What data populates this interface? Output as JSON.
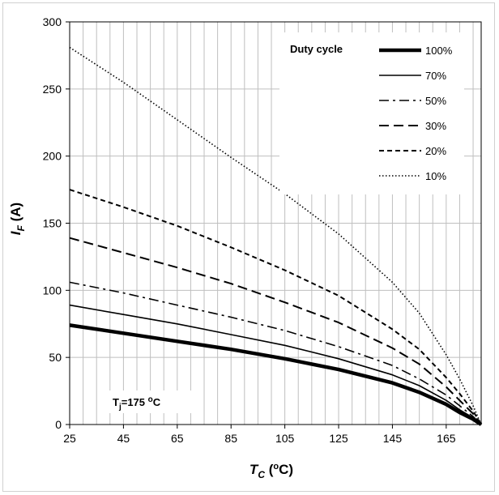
{
  "chart_data": {
    "type": "line",
    "xlabel": {
      "main": "T",
      "sub": "C",
      "unit_pre": " (",
      "unit_sup": "o",
      "unit_post": "C)"
    },
    "ylabel": {
      "main": "I",
      "sub": "F",
      "unit": " (A)"
    },
    "xlim": [
      25,
      178
    ],
    "ylim": [
      0,
      300
    ],
    "xticks": [
      25,
      45,
      65,
      85,
      105,
      125,
      145,
      165
    ],
    "yticks": [
      0,
      50,
      100,
      150,
      200,
      250,
      300
    ],
    "grid": {
      "x_minor_step": 5,
      "y_major_step": 50
    },
    "legend": {
      "title": "Duty cycle",
      "position": "top-right"
    },
    "annotation": {
      "main": "T",
      "sub": "j",
      "value": "=175 ",
      "sup": "o",
      "unit": "C"
    },
    "series": [
      {
        "name": "100%",
        "dash": "solid-thick",
        "x": [
          25,
          45,
          65,
          85,
          105,
          125,
          145,
          155,
          165,
          170,
          175,
          178
        ],
        "y": [
          74,
          68,
          62,
          56,
          49,
          41,
          31,
          24,
          15,
          9,
          4,
          0
        ]
      },
      {
        "name": "70%",
        "dash": "solid",
        "x": [
          25,
          45,
          65,
          85,
          105,
          125,
          145,
          155,
          165,
          170,
          175,
          178
        ],
        "y": [
          89,
          82,
          75,
          67,
          59,
          49,
          37,
          29,
          18,
          11,
          5,
          0
        ]
      },
      {
        "name": "50%",
        "dash": "dashdot",
        "x": [
          25,
          45,
          65,
          85,
          105,
          125,
          145,
          155,
          165,
          170,
          175,
          178
        ],
        "y": [
          106,
          98,
          89,
          80,
          70,
          58,
          44,
          34,
          22,
          14,
          6,
          0
        ]
      },
      {
        "name": "30%",
        "dash": "longdash",
        "x": [
          25,
          45,
          65,
          85,
          105,
          125,
          145,
          155,
          165,
          170,
          175,
          178
        ],
        "y": [
          139,
          128,
          117,
          105,
          91,
          76,
          57,
          45,
          28,
          18,
          8,
          0
        ]
      },
      {
        "name": "20%",
        "dash": "dash",
        "x": [
          25,
          45,
          65,
          85,
          105,
          125,
          145,
          155,
          165,
          170,
          175,
          178
        ],
        "y": [
          175,
          162,
          148,
          132,
          115,
          96,
          71,
          56,
          35,
          23,
          10,
          0
        ]
      },
      {
        "name": "10%",
        "dash": "dot",
        "x": [
          25,
          45,
          65,
          85,
          105,
          125,
          145,
          155,
          165,
          170,
          175,
          178
        ],
        "y": [
          281,
          255,
          227,
          199,
          172,
          142,
          106,
          83,
          52,
          34,
          14,
          0
        ]
      }
    ]
  }
}
